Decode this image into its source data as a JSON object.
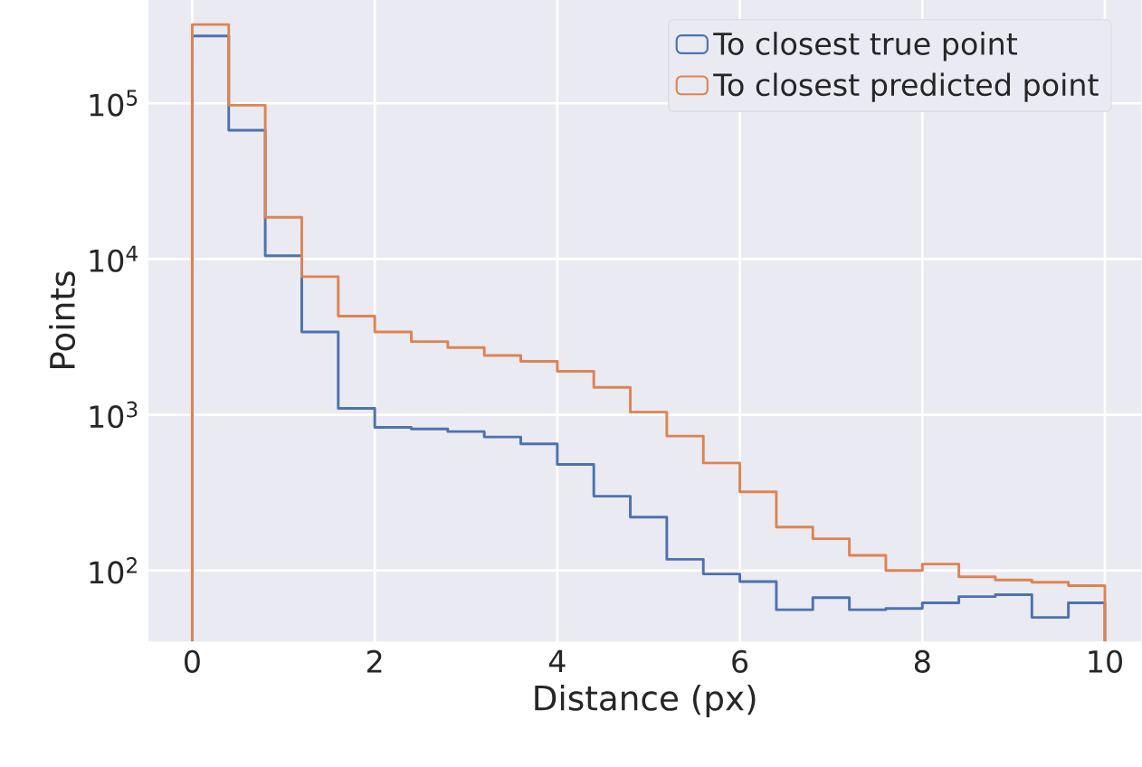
{
  "chart_data": {
    "type": "histogram",
    "xlabel": "Distance (px)",
    "ylabel": "Points",
    "bins": [
      0,
      0.4,
      0.8,
      1.2,
      1.6,
      2,
      2.4,
      2.8,
      3.2,
      3.6,
      4,
      4.4,
      4.8,
      5.2,
      5.6,
      6,
      6.4,
      6.8,
      7.2,
      7.6,
      8,
      8.4,
      8.8,
      9.2,
      9.6,
      10
    ],
    "series": [
      {
        "name": "To closest true point",
        "color": "#4c72b0",
        "values": [
          270000,
          67000,
          10500,
          3400,
          1100,
          830,
          810,
          780,
          720,
          650,
          480,
          300,
          220,
          118,
          95,
          85,
          56,
          67,
          56,
          57,
          62,
          68,
          70,
          50,
          62
        ]
      },
      {
        "name": "To closest predicted point",
        "color": "#dd8452",
        "values": [
          320000,
          97000,
          18500,
          7700,
          4300,
          3400,
          2950,
          2700,
          2400,
          2200,
          1900,
          1500,
          1040,
          730,
          490,
          320,
          190,
          160,
          125,
          100,
          110,
          91,
          87,
          84,
          80
        ]
      }
    ],
    "log": "y",
    "xlim": [
      -0.48,
      10.4
    ],
    "ylim": [
      35,
      460000
    ],
    "xticks": [
      0,
      2,
      4,
      6,
      8,
      10
    ],
    "yticks": [
      {
        "value": 100,
        "label": "10$^{2}$"
      },
      {
        "value": 1000,
        "label": "10$^{3}$"
      },
      {
        "value": 10000,
        "label": "10$^{4}$"
      },
      {
        "value": 100000,
        "label": "10$^{5}$"
      }
    ],
    "grid": true,
    "legend": "top right"
  }
}
